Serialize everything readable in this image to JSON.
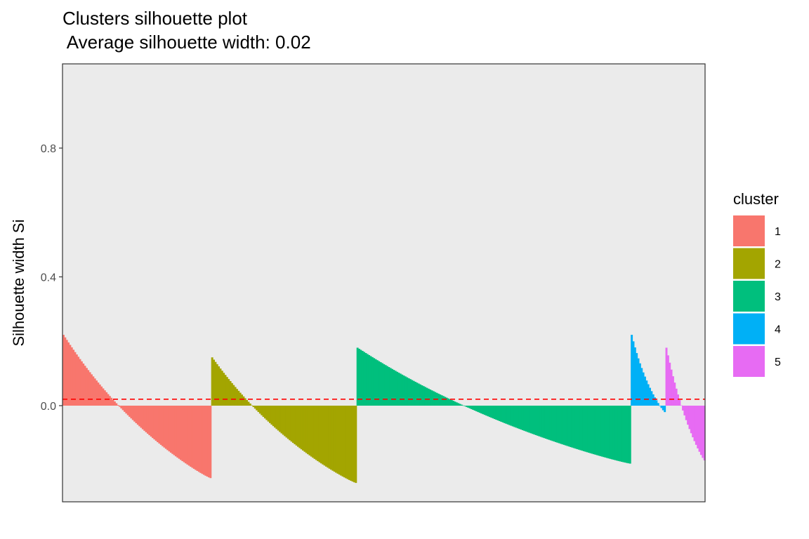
{
  "chart_data": {
    "type": "bar",
    "title": "Clusters silhouette plot",
    "subtitle": " Average silhouette width: 0.02",
    "xlabel": "",
    "ylabel": "Silhouette width Si",
    "ylim": [
      -0.3,
      1.05
    ],
    "yticks": [
      "0.0",
      "0.4",
      "0.8"
    ],
    "ytick_values": [
      0.0,
      0.4,
      0.8
    ],
    "average_line": 0.02,
    "average_line_color": "#ff0000",
    "legend_title": "cluster",
    "legend_position": "right",
    "grid": false,
    "panel_background": "#ebebeb",
    "series": [
      {
        "name": "1",
        "color": "#f8766d",
        "count": 90,
        "max": 0.22,
        "min": -0.225,
        "shape": 1.8
      },
      {
        "name": "2",
        "color": "#a3a500",
        "count": 88,
        "max": 0.15,
        "min": -0.24,
        "shape": 1.8
      },
      {
        "name": "3",
        "color": "#00bf7d",
        "count": 166,
        "max": 0.18,
        "min": -0.18,
        "shape": 1.6
      },
      {
        "name": "4",
        "color": "#00b0f6",
        "count": 21,
        "max": 0.22,
        "min": -0.02,
        "shape": 2.2
      },
      {
        "name": "5",
        "color": "#e76bf3",
        "count": 24,
        "max": 0.18,
        "min": -0.17,
        "shape": 1.8
      }
    ]
  }
}
